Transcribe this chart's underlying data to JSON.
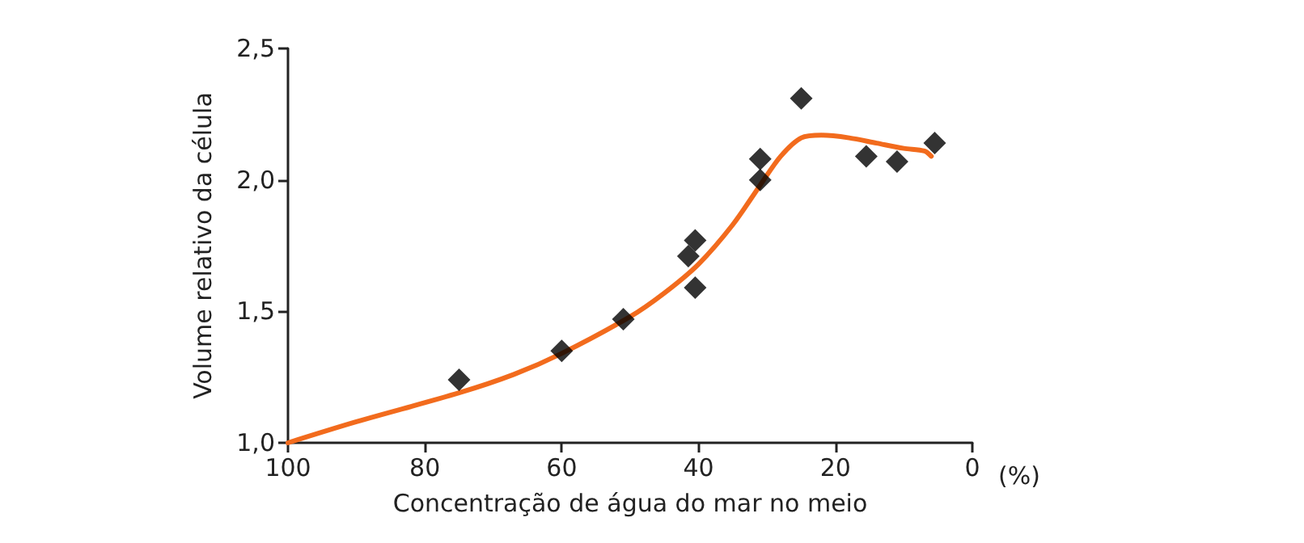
{
  "chart_data": {
    "type": "scatter",
    "xlabel": "Concentração de água do mar no meio",
    "ylabel": "Volume relativo da célula",
    "annotations": [
      "(%)"
    ],
    "xlim": [
      100,
      0
    ],
    "xticks": [
      100,
      80,
      60,
      40,
      20,
      0
    ],
    "ylim": [
      1,
      2.5
    ],
    "yticks": [
      {
        "value": 1,
        "label": "1,0"
      },
      {
        "value": 1.5,
        "label": "1,5"
      },
      {
        "value": 2,
        "label": "2,0"
      },
      {
        "value": 2.5,
        "label": "2,5"
      }
    ],
    "grid": false,
    "series": [
      {
        "color": "#000000",
        "marker": "diamond",
        "x": [
          75,
          60,
          51,
          41.5,
          40.5,
          40.5,
          31,
          31,
          25,
          15.5,
          11,
          5.5
        ],
        "values": [
          1.24,
          1.35,
          1.47,
          1.71,
          1.77,
          1.59,
          2.08,
          2.0,
          2.31,
          2.09,
          2.07,
          2.14
        ]
      },
      {
        "type": "line",
        "color": "#f26b1d",
        "marker": "none",
        "line_style": "solid",
        "x": [
          100,
          90,
          75,
          67,
          60,
          50,
          45,
          40,
          35,
          31,
          28,
          25,
          22,
          18,
          14,
          10,
          7,
          6
        ],
        "values": [
          1.0,
          1.08,
          1.19,
          1.26,
          1.34,
          1.48,
          1.57,
          1.68,
          1.83,
          1.98,
          2.09,
          2.16,
          2.17,
          2.16,
          2.14,
          2.12,
          2.11,
          2.09
        ]
      }
    ]
  }
}
